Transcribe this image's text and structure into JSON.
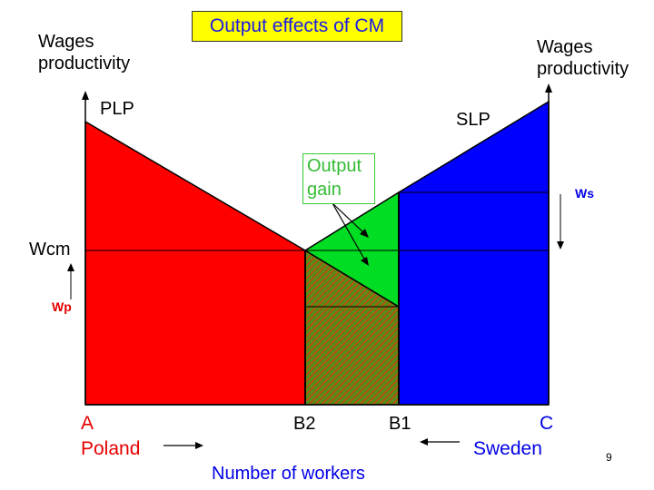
{
  "title": "Output effects of CM",
  "left_axis_label": [
    "Wages",
    "productivity"
  ],
  "right_axis_label": [
    "Wages",
    "productivity"
  ],
  "curves": {
    "plp": "PLP",
    "slp": "SLP"
  },
  "wage_labels": {
    "wcm": "Wcm",
    "wp": "Wp",
    "ws": "Ws"
  },
  "callout": [
    "Output",
    "gain"
  ],
  "points": {
    "a": "A",
    "b2": "B2",
    "b1": "B1",
    "c": "C"
  },
  "countries": {
    "left": "Poland",
    "right": "Sweden"
  },
  "x_axis_label": "Number of workers",
  "page_number": "9",
  "colors": {
    "poland": "#ff0000",
    "sweden": "#0000ff",
    "gain": "#00dd22",
    "title_bg": "#ffff00",
    "title_text": "#1a1ae6"
  }
}
